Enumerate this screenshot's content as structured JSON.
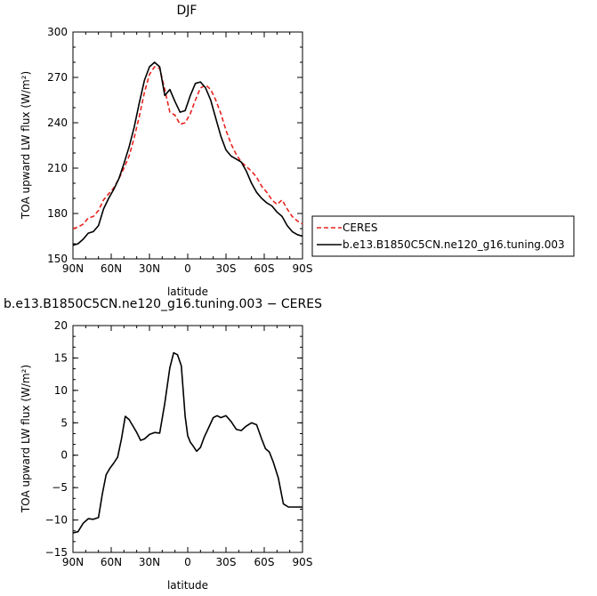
{
  "chart_data": [
    {
      "type": "line",
      "title": "DJF",
      "xlabel": "latitude",
      "ylabel": "TOA upward LW flux (W/m²)",
      "xlim": [
        90,
        -90
      ],
      "ylim": [
        150,
        300
      ],
      "x_ticks": [
        90,
        60,
        30,
        0,
        -30,
        -60,
        -90
      ],
      "x_tick_labels": [
        "90N",
        "60N",
        "30N",
        "0",
        "30S",
        "60S",
        "90S"
      ],
      "y_ticks": [
        150,
        180,
        210,
        240,
        270,
        300
      ],
      "y_tick_labels": [
        "150",
        "180",
        "210",
        "240",
        "270",
        "300"
      ],
      "legend": "outside-right",
      "series": [
        {
          "name": "CERES",
          "color": "#e8231e",
          "dash": "dashed",
          "x": [
            90,
            86,
            82,
            78,
            74,
            70,
            66,
            62,
            58,
            54,
            50,
            46,
            42,
            38,
            34,
            30,
            26,
            22,
            18,
            14,
            10,
            6,
            2,
            -2,
            -6,
            -10,
            -14,
            -18,
            -22,
            -26,
            -30,
            -34,
            -38,
            -42,
            -46,
            -50,
            -54,
            -58,
            -62,
            -66,
            -70,
            -74,
            -78,
            -82,
            -86,
            -90
          ],
          "y": [
            170,
            171,
            173,
            177,
            178,
            182,
            189,
            193,
            197,
            203,
            210,
            218,
            230,
            244,
            260,
            272,
            277,
            276,
            262,
            247,
            245,
            239,
            240,
            246,
            255,
            263,
            265,
            262,
            255,
            246,
            235,
            226,
            219,
            214,
            211,
            208,
            204,
            198,
            194,
            189,
            186,
            189,
            183,
            178,
            175,
            173
          ]
        },
        {
          "name": "b.e13.B1850C5CN.ne120_g16.tuning.003",
          "color": "#000000",
          "dash": "solid",
          "x": [
            90,
            86,
            82,
            78,
            74,
            70,
            66,
            62,
            58,
            54,
            50,
            46,
            42,
            38,
            34,
            30,
            26,
            22,
            18,
            14,
            10,
            6,
            2,
            -2,
            -6,
            -10,
            -14,
            -18,
            -22,
            -26,
            -30,
            -34,
            -38,
            -42,
            -46,
            -50,
            -54,
            -58,
            -62,
            -66,
            -70,
            -74,
            -78,
            -82,
            -86,
            -90
          ],
          "y": [
            159,
            160,
            163,
            167,
            168,
            172,
            183,
            190,
            196,
            203,
            213,
            224,
            237,
            253,
            268,
            277,
            280,
            277,
            258,
            262,
            254,
            247,
            248,
            258,
            266,
            267,
            263,
            255,
            243,
            231,
            222,
            218,
            216,
            214,
            208,
            200,
            194,
            190,
            187,
            185,
            181,
            178,
            172,
            168,
            166,
            165
          ]
        }
      ]
    },
    {
      "type": "line",
      "title": "b.e13.B1850C5CN.ne120_g16.tuning.003 − CERES",
      "xlabel": "latitude",
      "ylabel": "TOA upward LW flux (W/m²)",
      "xlim": [
        90,
        -90
      ],
      "ylim": [
        -15,
        20
      ],
      "x_ticks": [
        90,
        60,
        30,
        0,
        -30,
        -60,
        -90
      ],
      "x_tick_labels": [
        "90N",
        "60N",
        "30N",
        "0",
        "30S",
        "60S",
        "90S"
      ],
      "y_ticks": [
        -15,
        -10,
        -5,
        0,
        5,
        10,
        15,
        20
      ],
      "y_tick_labels": [
        "−15",
        "−10",
        "−5",
        "0",
        "5",
        "10",
        "15",
        "20"
      ],
      "series": [
        {
          "color": "#000000",
          "dash": "solid",
          "x": [
            90,
            86,
            82,
            78,
            74,
            70,
            67,
            64,
            61,
            58,
            55,
            52,
            49,
            46,
            43,
            40,
            37,
            34,
            30,
            26,
            22,
            18,
            14,
            11,
            8,
            5,
            2,
            0,
            -2,
            -4,
            -7,
            -10,
            -13,
            -17,
            -20,
            -23,
            -26,
            -30,
            -34,
            -38,
            -42,
            -46,
            -50,
            -54,
            -58,
            -61,
            -64,
            -67,
            -71,
            -75,
            -79,
            -82,
            -86,
            -88,
            -90
          ],
          "y": [
            -12,
            -11.8,
            -10.5,
            -9.8,
            -9.9,
            -9.6,
            -6,
            -3,
            -2,
            -1.2,
            -0.3,
            2.5,
            6,
            5.5,
            4.5,
            3.5,
            2.3,
            2.5,
            3.2,
            3.5,
            3.4,
            8,
            13.5,
            15.8,
            15.5,
            13.8,
            6,
            3,
            2,
            1.5,
            0.6,
            1.2,
            2.8,
            4.5,
            5.8,
            6.1,
            5.8,
            6.1,
            5.2,
            4.0,
            3.8,
            4.5,
            5.0,
            4.7,
            2.5,
            1,
            0.5,
            -1,
            -3.5,
            -7.5,
            -8.0,
            -8.0,
            -8.0,
            -8.0,
            -8.0
          ]
        }
      ]
    }
  ]
}
